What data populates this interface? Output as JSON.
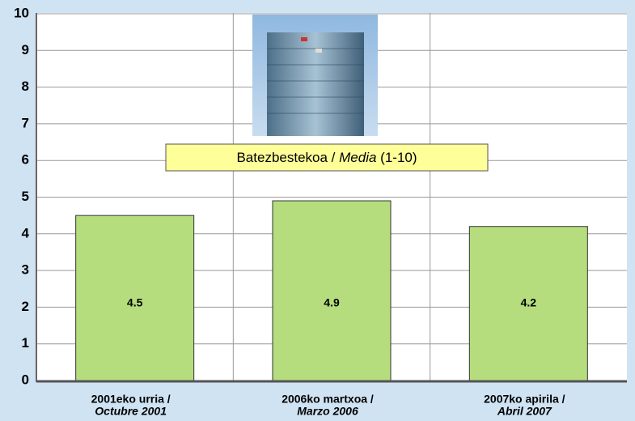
{
  "chart_data": {
    "type": "bar",
    "categories": [
      [
        "2001eko urria /",
        "Octubre 2001"
      ],
      [
        "2006ko martxoa /",
        "Marzo 2006"
      ],
      [
        "2007ko apirila /",
        "Abril 2007"
      ]
    ],
    "series": [
      {
        "name": [
          "Batezbestekoa /",
          "Media",
          "(1-10)"
        ],
        "color": "#b5dd7e",
        "values": [
          4.5,
          4.9,
          4.2
        ]
      }
    ],
    "ylim": [
      0,
      10
    ],
    "yticks": [
      0,
      1,
      2,
      3,
      4,
      5,
      6,
      7,
      8,
      9,
      10
    ],
    "grid": true
  }
}
